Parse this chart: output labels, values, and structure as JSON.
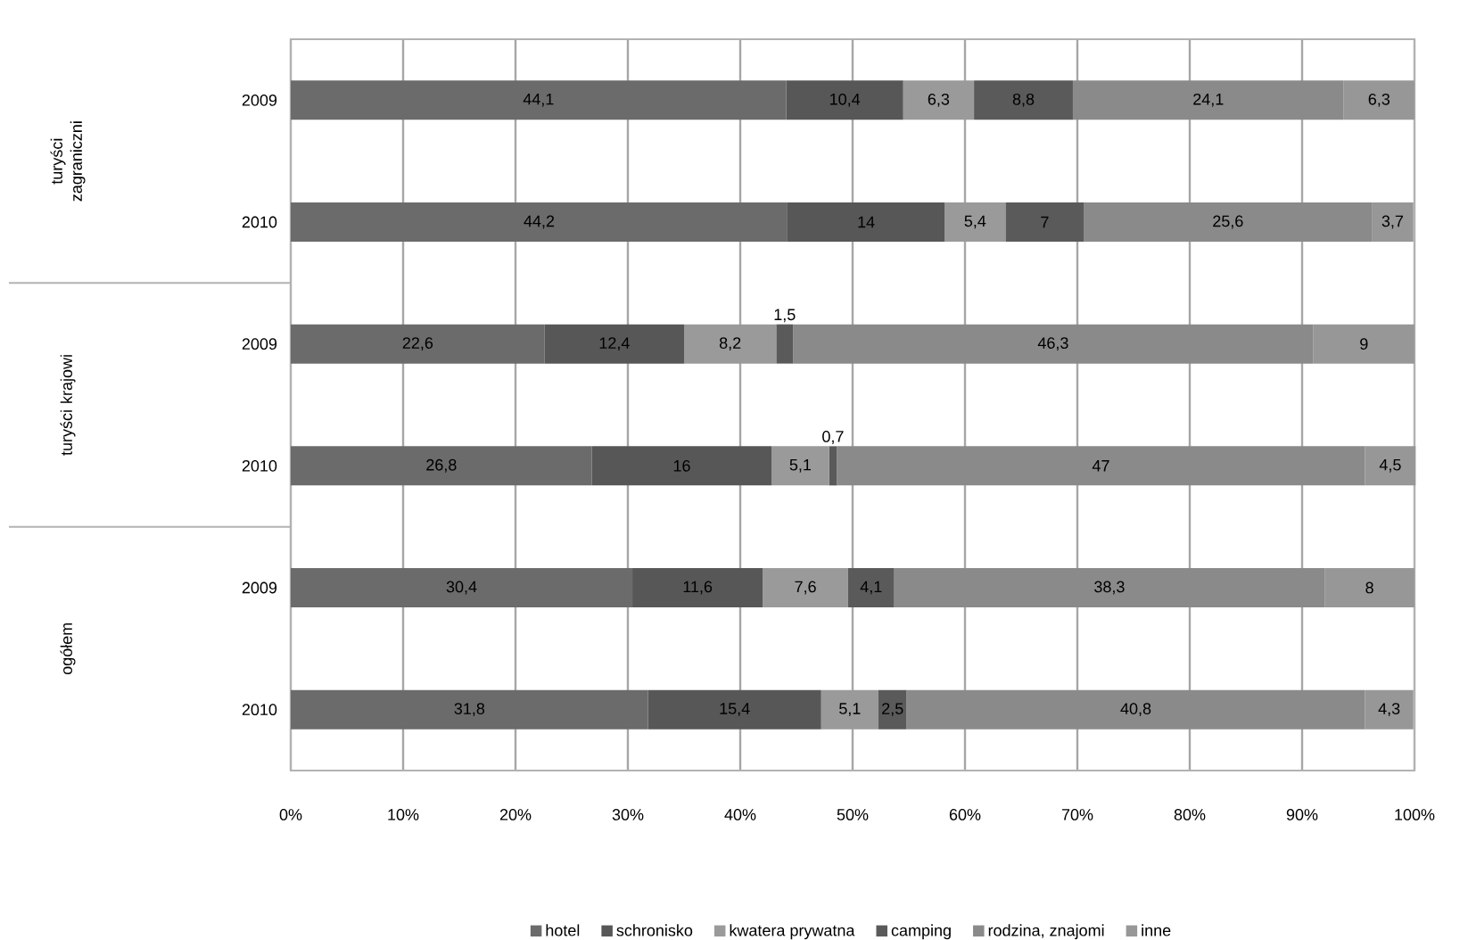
{
  "chart_data": {
    "type": "bar",
    "orientation": "horizontal",
    "stacked": true,
    "categories": [
      "2009",
      "2010",
      "2009",
      "2010",
      "2009",
      "2010"
    ],
    "annotations": [
      "turyści zagraniczni",
      "turyści krajowi",
      "ogółem"
    ],
    "series": [
      {
        "name": "hotel",
        "color": "#6b6b6b",
        "values": [
          44.1,
          44.2,
          22.6,
          26.8,
          30.4,
          31.8
        ],
        "value_labels": [
          "44,1",
          "44,2",
          "22,6",
          "26,8",
          "30,4",
          "31,8"
        ]
      },
      {
        "name": "schronisko",
        "color": "#575757",
        "values": [
          10.4,
          14,
          12.4,
          16,
          11.6,
          15.4
        ],
        "value_labels": [
          "10,4",
          "14",
          "12,4",
          "16",
          "11,6",
          "15,4"
        ]
      },
      {
        "name": "kwatera prywatna",
        "color": "#9a9a9a",
        "values": [
          6.3,
          5.4,
          8.2,
          5.1,
          7.6,
          5.1
        ],
        "value_labels": [
          "6,3",
          "5,4",
          "8,2",
          "5,1",
          "7,6",
          "5,1"
        ]
      },
      {
        "name": "camping",
        "color": "#5a5a5a",
        "values": [
          8.8,
          7,
          1.5,
          0.7,
          4.1,
          2.5
        ],
        "value_labels": [
          "8,8",
          "7",
          "1,5",
          "0,7",
          "4,1",
          "2,5"
        ]
      },
      {
        "name": "rodzina, znajomi",
        "color": "#8a8a8a",
        "values": [
          24.1,
          25.6,
          46.3,
          47,
          38.3,
          40.8
        ],
        "value_labels": [
          "24,1",
          "25,6",
          "46,3",
          "47",
          "38,3",
          "40,8"
        ]
      },
      {
        "name": "inne",
        "color": "#979797",
        "values": [
          6.3,
          3.7,
          9,
          4.5,
          8,
          4.3
        ],
        "value_labels": [
          "6,3",
          "3,7",
          "9",
          "4,5",
          "8",
          "4,3"
        ]
      }
    ],
    "xlim": [
      0,
      100
    ],
    "xticks": [
      {
        "value": 0,
        "label": "0%"
      },
      {
        "value": 10,
        "label": "10%"
      },
      {
        "value": 20,
        "label": "20%"
      },
      {
        "value": 30,
        "label": "30%"
      },
      {
        "value": 40,
        "label": "40%"
      },
      {
        "value": 50,
        "label": "50%"
      },
      {
        "value": 60,
        "label": "60%"
      },
      {
        "value": 70,
        "label": "70%"
      },
      {
        "value": 80,
        "label": "80%"
      },
      {
        "value": 90,
        "label": "90%"
      },
      {
        "value": 100,
        "label": "100%"
      }
    ],
    "grid": "x",
    "legend": "bottom"
  }
}
